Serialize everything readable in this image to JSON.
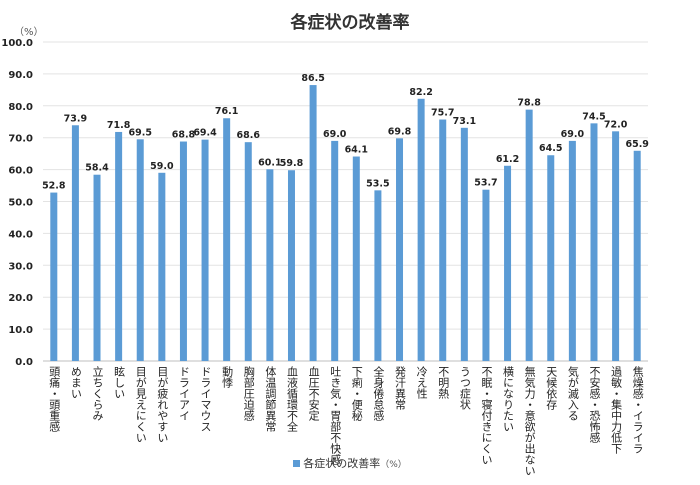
{
  "chart_data": {
    "type": "bar",
    "title": "各症状の改善率",
    "ylabel": "（%）",
    "ylim": [
      0,
      100
    ],
    "yticks": [
      "0.0",
      "10.0",
      "20.0",
      "30.0",
      "40.0",
      "50.0",
      "60.0",
      "70.0",
      "80.0",
      "90.0",
      "100.0"
    ],
    "grid": true,
    "legend_position": "bottom",
    "bar_color": "#5B9BD5",
    "categories": [
      "頭痛・頭重感",
      "めまい",
      "立ちくらみ",
      "眩しい",
      "目が見えにくい",
      "目が疲れやすい",
      "ドライアイ",
      "ドライマウス",
      "動悸",
      "胸部圧迫感",
      "体温調節異常",
      "血液循環不全",
      "血圧不安定",
      "吐き気・胃部不快感",
      "下痢・便秘",
      "全身倦怠感",
      "発汗異常",
      "冷え性",
      "不明熱",
      "うつ症状",
      "不眠・寝付きにくい",
      "横になりたい",
      "無気力・意欲が出ない",
      "天候依存",
      "気が滅入る",
      "不安感・恐怖感",
      "過敏・集中力低下",
      "焦燥感・イライラ"
    ],
    "series": [
      {
        "name": "各症状の改善率",
        "values": [
          52.8,
          73.9,
          58.4,
          71.8,
          69.5,
          59.0,
          68.8,
          69.4,
          76.1,
          68.6,
          60.1,
          59.8,
          86.5,
          69.0,
          64.1,
          53.5,
          69.8,
          82.2,
          75.7,
          73.1,
          53.7,
          61.2,
          78.8,
          64.5,
          69.0,
          74.5,
          72.0,
          65.9
        ]
      }
    ],
    "legend_unit": "（%）"
  }
}
